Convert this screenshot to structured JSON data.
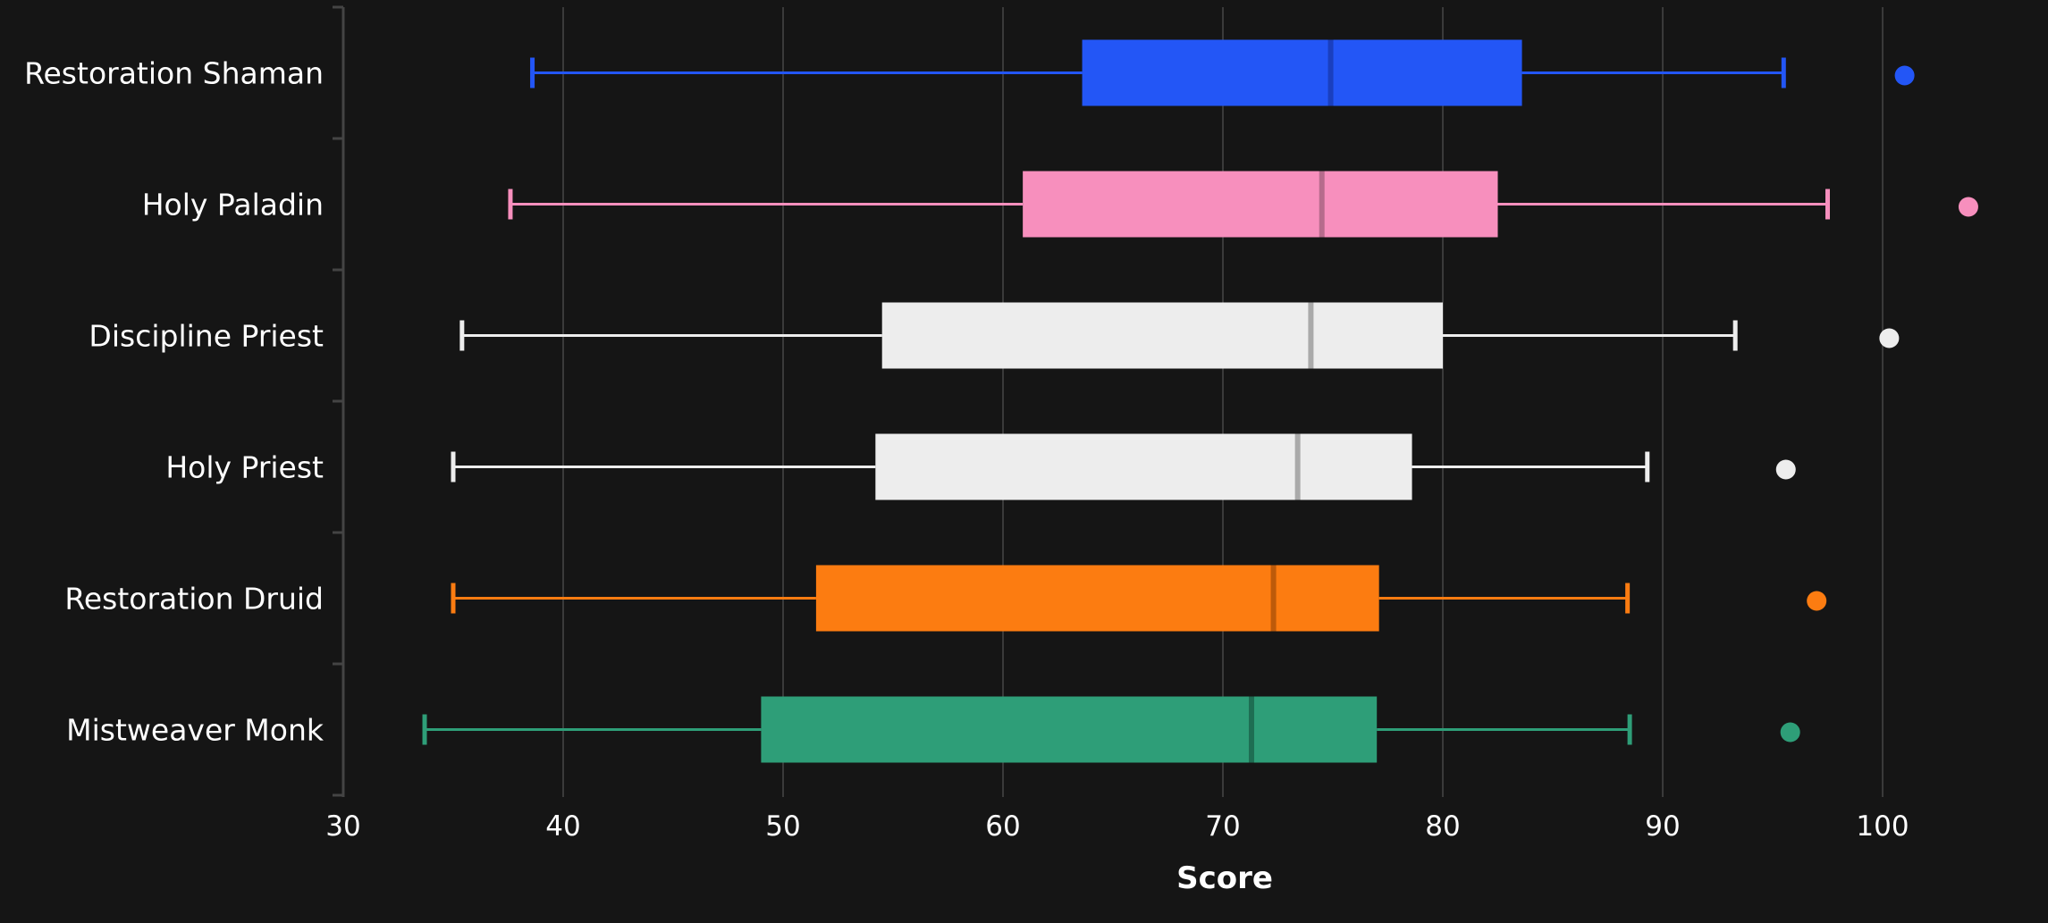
{
  "chart_data": {
    "type": "boxplot",
    "orientation": "horizontal",
    "xlabel": "Score",
    "ylabel": "",
    "title": "",
    "xlim": [
      30,
      102
    ],
    "xticks": [
      30,
      40,
      50,
      60,
      70,
      80,
      90,
      100
    ],
    "grid": "vertical",
    "background": "#151515",
    "grid_color": "#3a3a3a",
    "series": [
      {
        "name": "Restoration Shaman",
        "color": "#2356f6",
        "median_color": "#1a3fbf",
        "whisker_low": 38.6,
        "q1": 63.6,
        "median": 74.9,
        "q3": 83.6,
        "whisker_high": 95.5,
        "outliers": [
          101.0
        ]
      },
      {
        "name": "Holy Paladin",
        "color": "#f78fbd",
        "median_color": "#b66b8c",
        "whisker_low": 37.6,
        "q1": 60.9,
        "median": 74.5,
        "q3": 82.5,
        "whisker_high": 97.5,
        "outliers": [
          103.9
        ]
      },
      {
        "name": "Discipline Priest",
        "color": "#ededed",
        "median_color": "#aaaaaa",
        "whisker_low": 35.4,
        "q1": 54.5,
        "median": 74.0,
        "q3": 80.0,
        "whisker_high": 93.3,
        "outliers": [
          100.3
        ]
      },
      {
        "name": "Holy Priest",
        "color": "#ededed",
        "median_color": "#aaaaaa",
        "whisker_low": 35.0,
        "q1": 54.2,
        "median": 73.4,
        "q3": 78.6,
        "whisker_high": 89.3,
        "outliers": [
          95.6
        ]
      },
      {
        "name": "Restoration Druid",
        "color": "#fc7c11",
        "median_color": "#bd5a0a",
        "whisker_low": 35.0,
        "q1": 51.5,
        "median": 72.3,
        "q3": 77.1,
        "whisker_high": 88.4,
        "outliers": [
          97.0
        ]
      },
      {
        "name": "Mistweaver Monk",
        "color": "#2e9e78",
        "median_color": "#1e6e53",
        "whisker_low": 33.7,
        "q1": 49.0,
        "median": 71.3,
        "q3": 77.0,
        "whisker_high": 88.5,
        "outliers": [
          95.8
        ]
      }
    ]
  }
}
